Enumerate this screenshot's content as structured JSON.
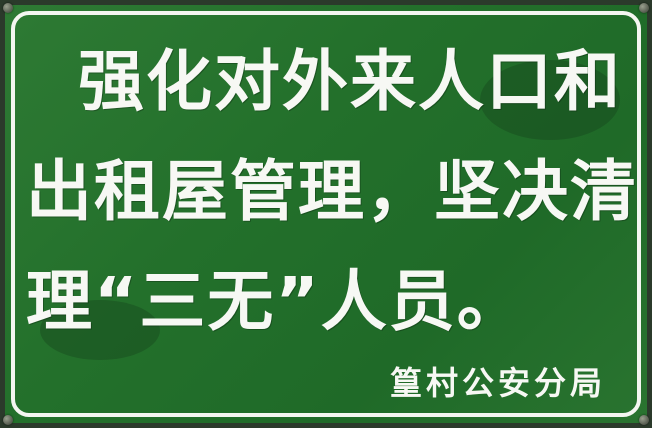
{
  "sign": {
    "background_color": "#23702b",
    "text_color": "#f7f8f4",
    "line_1": "强化对外来人口和",
    "line_2": "出租屋管理，坚决清",
    "line_3": "理“三无”人员。",
    "issuer": "篁村公安分局"
  }
}
